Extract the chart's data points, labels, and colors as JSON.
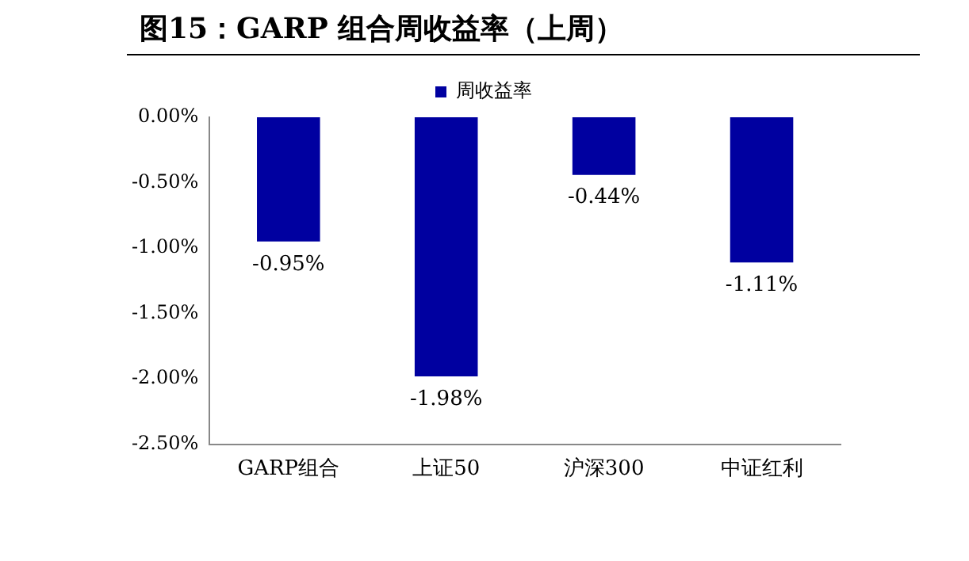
{
  "chart_data": {
    "type": "bar",
    "title": "图15：GARP 组合周收益率（上周）",
    "categories": [
      "GARP组合",
      "上证50",
      "沪深300",
      "中证红利"
    ],
    "series": [
      {
        "name": "周收益率",
        "color": "#0000a0",
        "values": [
          -0.95,
          -1.98,
          -0.44,
          -1.11
        ],
        "value_labels": [
          "-0.95%",
          "-1.98%",
          "-0.44%",
          "-1.11%"
        ]
      }
    ],
    "ylim": [
      -2.5,
      0
    ],
    "yticks": [
      {
        "value": 0,
        "label": "0.00%"
      },
      {
        "value": -0.5,
        "label": "-0.50%"
      },
      {
        "value": -1,
        "label": "-1.00%"
      },
      {
        "value": -1.5,
        "label": "-1.50%"
      },
      {
        "value": -2,
        "label": "-2.00%"
      },
      {
        "value": -2.5,
        "label": "-2.50%"
      }
    ],
    "grid": false,
    "legend": "top"
  }
}
